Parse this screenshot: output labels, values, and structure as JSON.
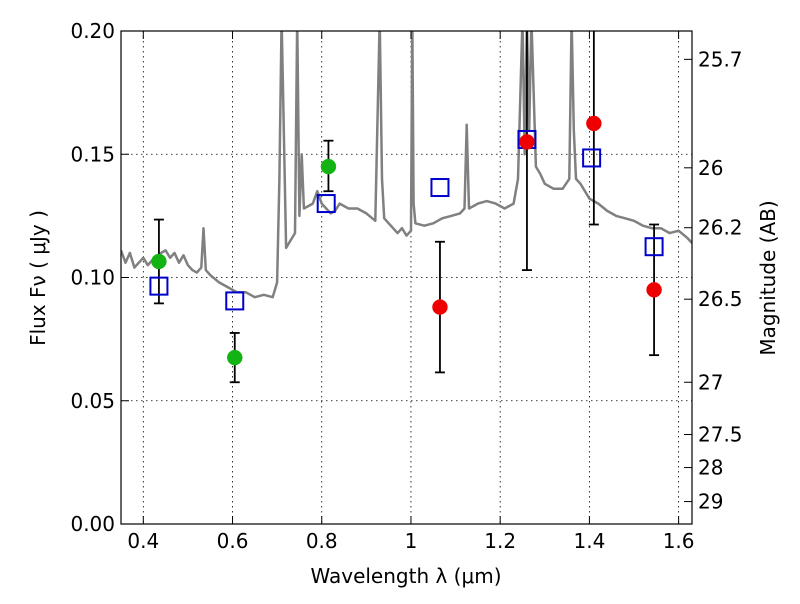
{
  "chart_data": {
    "type": "scatter",
    "title": "",
    "xlabel": "Wavelength  λ (μm)",
    "ylabel": "Flux  Fν  ( μJy )",
    "y2label": "Magnitude (AB)",
    "xlim": [
      0.35,
      1.63
    ],
    "ylim": [
      0.0,
      0.2
    ],
    "grid": true,
    "x_ticks": [
      {
        "value": 0.4,
        "label": "0.4"
      },
      {
        "value": 0.6,
        "label": "0.6"
      },
      {
        "value": 0.8,
        "label": "0.8"
      },
      {
        "value": 1.0,
        "label": "1"
      },
      {
        "value": 1.2,
        "label": "1.2"
      },
      {
        "value": 1.4,
        "label": "1.4"
      },
      {
        "value": 1.6,
        "label": "1.6"
      }
    ],
    "y_ticks": [
      {
        "value": 0.0,
        "label": "0.00"
      },
      {
        "value": 0.05,
        "label": "0.05"
      },
      {
        "value": 0.1,
        "label": "0.10"
      },
      {
        "value": 0.15,
        "label": "0.15"
      },
      {
        "value": 0.2,
        "label": "0.20"
      }
    ],
    "mag_ticks": [
      {
        "label": "25.7",
        "flux": 0.1885
      },
      {
        "label": "26",
        "flux": 0.1445
      },
      {
        "label": "26.2",
        "flux": 0.1202
      },
      {
        "label": "26.5",
        "flux": 0.0912
      },
      {
        "label": "27",
        "flux": 0.0575
      },
      {
        "label": "27.5",
        "flux": 0.0363
      },
      {
        "label": "28",
        "flux": 0.0229
      },
      {
        "label": "29",
        "flux": 0.0091
      }
    ],
    "series": [
      {
        "type": "line",
        "color": "#808080",
        "x": [
          0.35,
          0.36,
          0.37,
          0.38,
          0.39,
          0.4,
          0.41,
          0.42,
          0.43,
          0.44,
          0.45,
          0.46,
          0.47,
          0.48,
          0.49,
          0.5,
          0.51,
          0.52,
          0.53,
          0.535,
          0.54,
          0.55,
          0.57,
          0.59,
          0.61,
          0.63,
          0.65,
          0.67,
          0.69,
          0.7,
          0.705,
          0.71,
          0.715,
          0.72,
          0.73,
          0.74,
          0.745,
          0.75,
          0.755,
          0.76,
          0.78,
          0.79,
          0.8,
          0.81,
          0.82,
          0.83,
          0.84,
          0.86,
          0.88,
          0.9,
          0.92,
          0.93,
          0.935,
          0.94,
          0.95,
          0.96,
          0.97,
          0.98,
          0.99,
          1.0,
          1.003,
          1.006,
          1.01,
          1.03,
          1.05,
          1.07,
          1.09,
          1.11,
          1.12,
          1.125,
          1.13,
          1.15,
          1.17,
          1.19,
          1.21,
          1.23,
          1.24,
          1.25,
          1.255,
          1.26,
          1.265,
          1.27,
          1.28,
          1.29,
          1.3,
          1.32,
          1.34,
          1.355,
          1.36,
          1.365,
          1.37,
          1.38,
          1.4,
          1.42,
          1.44,
          1.46,
          1.48,
          1.5,
          1.52,
          1.54,
          1.56,
          1.58,
          1.6,
          1.62,
          1.63
        ],
        "y": [
          0.111,
          0.106,
          0.11,
          0.104,
          0.106,
          0.108,
          0.105,
          0.107,
          0.108,
          0.11,
          0.111,
          0.108,
          0.11,
          0.106,
          0.109,
          0.105,
          0.103,
          0.102,
          0.104,
          0.12,
          0.103,
          0.101,
          0.098,
          0.096,
          0.094,
          0.094,
          0.092,
          0.093,
          0.092,
          0.098,
          0.14,
          0.205,
          0.16,
          0.112,
          0.115,
          0.118,
          0.205,
          0.125,
          0.15,
          0.128,
          0.13,
          0.135,
          0.13,
          0.128,
          0.126,
          0.127,
          0.13,
          0.128,
          0.128,
          0.126,
          0.123,
          0.205,
          0.14,
          0.124,
          0.122,
          0.12,
          0.118,
          0.12,
          0.117,
          0.119,
          0.205,
          0.13,
          0.122,
          0.121,
          0.122,
          0.124,
          0.125,
          0.126,
          0.128,
          0.162,
          0.128,
          0.13,
          0.131,
          0.13,
          0.128,
          0.13,
          0.14,
          0.205,
          0.15,
          0.205,
          0.16,
          0.205,
          0.145,
          0.142,
          0.138,
          0.136,
          0.136,
          0.14,
          0.205,
          0.16,
          0.14,
          0.138,
          0.132,
          0.13,
          0.127,
          0.125,
          0.124,
          0.123,
          0.121,
          0.12,
          0.12,
          0.118,
          0.119,
          0.116,
          0.114
        ]
      },
      {
        "type": "errorbar",
        "marker": "circle",
        "color": "#12b312",
        "x": [
          0.435,
          0.605,
          0.815
        ],
        "y": [
          0.1065,
          0.0675,
          0.145
        ],
        "yerr_low": [
          0.0895,
          0.0575,
          0.135
        ],
        "yerr_high": [
          0.1235,
          0.0775,
          0.1555
        ]
      },
      {
        "type": "errorbar",
        "marker": "circle",
        "color": "#ee0000",
        "x": [
          1.065,
          1.26,
          1.41,
          1.545
        ],
        "y": [
          0.088,
          0.155,
          0.1625,
          0.095
        ],
        "yerr_low": [
          0.0615,
          0.103,
          0.1215,
          0.0685
        ],
        "yerr_high": [
          0.1145,
          0.2,
          0.2,
          0.1215
        ]
      },
      {
        "type": "scatter",
        "marker": "square-open",
        "color": "#0000cc",
        "x": [
          0.435,
          0.605,
          0.81,
          1.065,
          1.26,
          1.405,
          1.545
        ],
        "y": [
          0.0965,
          0.0905,
          0.13,
          0.1365,
          0.156,
          0.1485,
          0.1125
        ]
      }
    ]
  }
}
